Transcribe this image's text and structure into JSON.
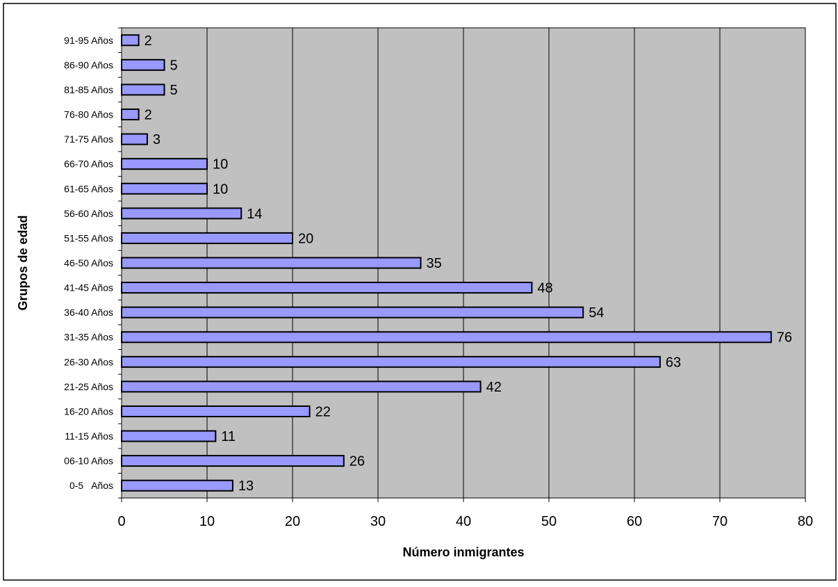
{
  "chart_data": {
    "type": "bar",
    "orientation": "horizontal",
    "xlabel": "Número inmigrantes",
    "ylabel": "Grupos de edad",
    "categories": [
      "0-5   Años",
      "06-10 Años",
      "11-15 Años",
      "16-20 Años",
      "21-25 Años",
      "26-30 Años",
      "31-35 Años",
      "36-40 Años",
      "41-45 Años",
      "46-50 Años",
      "51-55 Años",
      "56-60 Años",
      "61-65 Años",
      "66-70 Años",
      "71-75 Años",
      "76-80 Años",
      "81-85 Años",
      "86-90 Años",
      "91-95 Años"
    ],
    "values": [
      13,
      26,
      11,
      22,
      42,
      63,
      76,
      54,
      48,
      35,
      20,
      14,
      10,
      10,
      3,
      2,
      5,
      5,
      2
    ],
    "xlim": [
      0,
      80
    ],
    "xticks": [
      0,
      10,
      20,
      30,
      40,
      50,
      60,
      70,
      80
    ],
    "grid": "vertical",
    "legend": "none",
    "colors": {
      "bar": "#9999ff",
      "plot_background": "#c0c0c0",
      "gridline": "#000000"
    }
  }
}
